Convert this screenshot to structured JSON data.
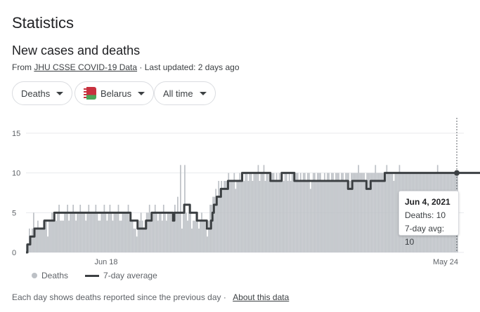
{
  "header": {
    "title": "Statistics"
  },
  "card": {
    "title": "New cases and deaths",
    "source_prefix": "From",
    "source_link": "JHU CSSE COVID-19 Data",
    "source_suffix": "· Last updated: 2 days ago"
  },
  "filters": {
    "metric": "Deaths",
    "region": "Belarus",
    "range": "All time"
  },
  "legend": {
    "bars": "Deaths",
    "line": "7-day average"
  },
  "tooltip": {
    "date": "Jun 4, 2021",
    "deaths": "Deaths: 10",
    "avg": "7-day avg: 10"
  },
  "footer": {
    "note": "Each day shows deaths reported since the previous day",
    "link": "About this data"
  },
  "colors": {
    "bars": "#bdc1c6",
    "line": "#3c4043",
    "grid": "#e8eaed"
  },
  "chart_data": {
    "type": "bar",
    "title": "",
    "xlabel": "",
    "ylabel": "",
    "ylim": [
      0,
      15
    ],
    "yticks": [
      "0",
      "5",
      "10",
      "15"
    ],
    "xticks": [
      "Jun 18",
      "May 24"
    ],
    "series": [
      {
        "name": "Deaths",
        "values": [
          1,
          1,
          3,
          2,
          3,
          5,
          3,
          3,
          4,
          3,
          3,
          3,
          4,
          3,
          4,
          2,
          4,
          4,
          5,
          4,
          5,
          4,
          5,
          6,
          4,
          4,
          4,
          5,
          5,
          6,
          4,
          5,
          5,
          6,
          5,
          4,
          5,
          5,
          6,
          5,
          5,
          5,
          4,
          5,
          6,
          5,
          5,
          5,
          5,
          6,
          5,
          4,
          4,
          5,
          5,
          6,
          5,
          4,
          5,
          6,
          5,
          4,
          5,
          5,
          5,
          6,
          4,
          4,
          5,
          5,
          5,
          5,
          6,
          4,
          4,
          4,
          3,
          3,
          2,
          3,
          4,
          5,
          4,
          3,
          4,
          5,
          5,
          6,
          5,
          4,
          5,
          6,
          5,
          4,
          5,
          5,
          4,
          6,
          5,
          4,
          5,
          5,
          5,
          4,
          5,
          6,
          5,
          7,
          5,
          11,
          3,
          5,
          11,
          5,
          4,
          5,
          6,
          3,
          4,
          4,
          5,
          4,
          3,
          4,
          5,
          4,
          4,
          3,
          2,
          4,
          6,
          6,
          7,
          7,
          8,
          7,
          9,
          8,
          9,
          8,
          9,
          9,
          9,
          10,
          9,
          9,
          9,
          10,
          8,
          9,
          9,
          10,
          9,
          10,
          9,
          10,
          10,
          9,
          10,
          10,
          9,
          10,
          10,
          10,
          11,
          9,
          10,
          10,
          11,
          9,
          10,
          10,
          9,
          10,
          10,
          10,
          9,
          10,
          9,
          10,
          9,
          10,
          9,
          10,
          10,
          9,
          10,
          9,
          10,
          10,
          9,
          10,
          10,
          9,
          10,
          9,
          10,
          10,
          9,
          10,
          10,
          8,
          9,
          10,
          10,
          9,
          10,
          10,
          10,
          9,
          9,
          10,
          9,
          10,
          10,
          9,
          10,
          10,
          9,
          10,
          10,
          10,
          9,
          10,
          10,
          9,
          10,
          10,
          10,
          9,
          10,
          10,
          10,
          10,
          10,
          11,
          10,
          10,
          10,
          10,
          9,
          10,
          10,
          10,
          10,
          10,
          10,
          11,
          10,
          10,
          10,
          10,
          10,
          10,
          10,
          11,
          10,
          10,
          10,
          10,
          9,
          10,
          10,
          10,
          11,
          10,
          10,
          10,
          10,
          10,
          10,
          10,
          10,
          10,
          10,
          10,
          10,
          10,
          10,
          10,
          10,
          10,
          10,
          10,
          10,
          10,
          10,
          10,
          10,
          10,
          10,
          11,
          10,
          10,
          10,
          10,
          10,
          10,
          10,
          10,
          10,
          10,
          10,
          10,
          10,
          10
        ]
      },
      {
        "name": "7-day average",
        "values": [
          0,
          1,
          1,
          2,
          2,
          2,
          3,
          3,
          3,
          3,
          3,
          3,
          3,
          4,
          4,
          4,
          4,
          4,
          4,
          4,
          5,
          5,
          5,
          5,
          5,
          5,
          5,
          5,
          5,
          5,
          5,
          5,
          5,
          5,
          5,
          5,
          5,
          5,
          5,
          5,
          5,
          5,
          5,
          5,
          5,
          5,
          5,
          5,
          5,
          5,
          5,
          5,
          5,
          5,
          5,
          5,
          5,
          5,
          5,
          5,
          5,
          5,
          5,
          5,
          5,
          5,
          5,
          5,
          5,
          5,
          5,
          5,
          5,
          5,
          4,
          4,
          4,
          4,
          4,
          3,
          3,
          3,
          3,
          3,
          3,
          4,
          4,
          4,
          4,
          5,
          5,
          5,
          5,
          5,
          5,
          5,
          5,
          5,
          5,
          5,
          5,
          5,
          5,
          5,
          4,
          5,
          5,
          5,
          5,
          5,
          5,
          5,
          6,
          6,
          6,
          6,
          5,
          5,
          5,
          5,
          5,
          4,
          4,
          4,
          4,
          4,
          4,
          4,
          3,
          3,
          3,
          4,
          5,
          6,
          6,
          7,
          7,
          7,
          8,
          8,
          8,
          8,
          8,
          9,
          9,
          9,
          9,
          9,
          9,
          9,
          9,
          9,
          9,
          10,
          10,
          10,
          10,
          10,
          10,
          10,
          10,
          10,
          10,
          10,
          10,
          10,
          10,
          10,
          10,
          10,
          10,
          10,
          10,
          9,
          9,
          9,
          9,
          9,
          9,
          9,
          9,
          10,
          10,
          10,
          10,
          10,
          10,
          10,
          10,
          10,
          9,
          9,
          9,
          9,
          9,
          9,
          9,
          9,
          9,
          9,
          9,
          9,
          9,
          9,
          9,
          9,
          9,
          9,
          9,
          9,
          9,
          9,
          9,
          9,
          9,
          9,
          9,
          9,
          9,
          9,
          9,
          9,
          9,
          9,
          9,
          9,
          9,
          9,
          8,
          8,
          8,
          9,
          9,
          9,
          9,
          9,
          9,
          9,
          9,
          9,
          9,
          8,
          8,
          8,
          9,
          9,
          9,
          9,
          9,
          9,
          9,
          9,
          9,
          9,
          10,
          10,
          10,
          10,
          10,
          10,
          10,
          10,
          10,
          10,
          10,
          10,
          10,
          10,
          10,
          10,
          10,
          10,
          10,
          10,
          10,
          10,
          10,
          10,
          10,
          10,
          10,
          10,
          10,
          10,
          10,
          10,
          10,
          10,
          10,
          10,
          10,
          10,
          10,
          10,
          10,
          10,
          10,
          10,
          10,
          10,
          10,
          10,
          10,
          10,
          10,
          10,
          10,
          10,
          10,
          10,
          10,
          10,
          10,
          10,
          10,
          10,
          10,
          10,
          10,
          10,
          10,
          10,
          10,
          10,
          10,
          10,
          10,
          10,
          10,
          10,
          10,
          10
        ]
      }
    ],
    "grid": true,
    "legend_position": "bottom-left"
  }
}
